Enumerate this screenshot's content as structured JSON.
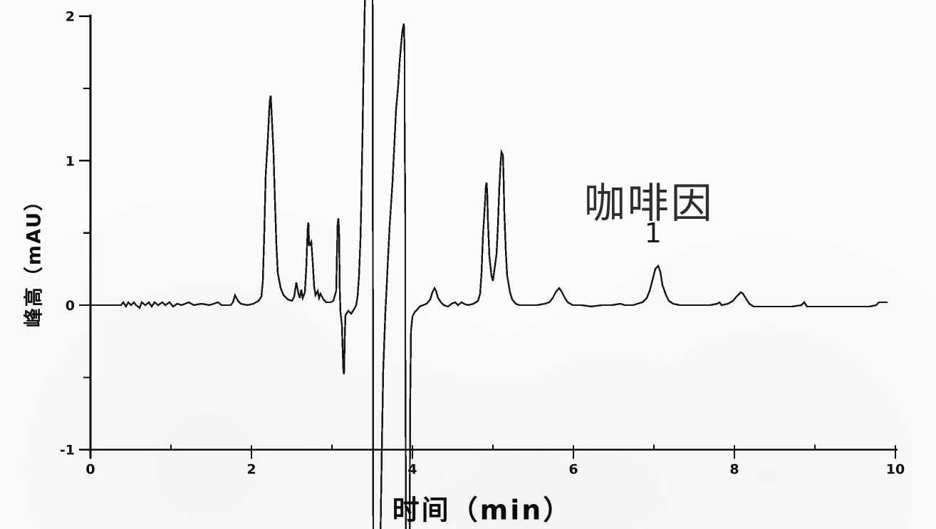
{
  "figure": {
    "background_color": "#fcfcfc",
    "trace_color": "#151515",
    "axis_color": "#0d0d0d",
    "annotation_color": "#2e2e2e"
  },
  "chart_data": {
    "type": "line",
    "title": "",
    "xlabel": "时间（min）",
    "ylabel": "峰高（mAU）",
    "xlim": [
      0,
      10
    ],
    "ylim": [
      -1,
      2
    ],
    "grid": false,
    "legend_position": "none",
    "x_major_ticks": [
      0,
      2,
      4,
      6,
      8,
      10
    ],
    "x_minor_ticks": [
      1,
      3,
      5,
      7,
      9
    ],
    "x_tick_labels": [
      "0",
      "2",
      "4",
      "6",
      "8",
      "10"
    ],
    "y_major_ticks": [
      2,
      1,
      0,
      -1
    ],
    "y_minor_ticks": [
      1.5,
      0.5,
      -0.5
    ],
    "y_tick_labels": [
      "2",
      "1",
      "0",
      "-1"
    ],
    "annotations": [
      {
        "text": "咖啡因",
        "x_min": 6.94,
        "y_mAU": 0.73
      },
      {
        "text": "1",
        "x_min": 6.99,
        "y_mAU": 0.5
      }
    ],
    "labeled_peaks": [
      {
        "peak_number": "1",
        "compound": "咖啡因",
        "retention_time_min": 7.05,
        "height_mAU": 0.27
      }
    ],
    "off_scale_segments": [
      {
        "time_min_range": [
          3.42,
          3.51
        ],
        "direction": "above_top",
        "beyond_mAU": 2
      },
      {
        "time_min_range": [
          3.51,
          3.6
        ],
        "direction": "below_bottom",
        "beyond_mAU": -1
      },
      {
        "time_min_range": [
          3.92,
          3.97
        ],
        "direction": "below_bottom",
        "beyond_mAU": -1
      }
    ],
    "series": [
      {
        "name": "HPLC chromatogram",
        "points": [
          [
            0.0,
            0
          ],
          [
            0.38,
            0
          ],
          [
            0.41,
            0.02
          ],
          [
            0.44,
            -0.01
          ],
          [
            0.47,
            0.02
          ],
          [
            0.5,
            0
          ],
          [
            0.54,
            0.02
          ],
          [
            0.57,
            0
          ],
          [
            0.61,
            -0.02
          ],
          [
            0.64,
            0.02
          ],
          [
            0.68,
            0
          ],
          [
            0.73,
            0.02
          ],
          [
            0.76,
            -0.01
          ],
          [
            0.8,
            0.02
          ],
          [
            0.84,
            0
          ],
          [
            0.89,
            0.02
          ],
          [
            0.93,
            0
          ],
          [
            0.98,
            0.02
          ],
          [
            1.03,
            -0.01
          ],
          [
            1.08,
            0.01
          ],
          [
            1.13,
            0
          ],
          [
            1.22,
            0.02
          ],
          [
            1.28,
            0
          ],
          [
            1.38,
            0.01
          ],
          [
            1.48,
            0
          ],
          [
            1.58,
            0.02
          ],
          [
            1.63,
            0
          ],
          [
            1.74,
            0
          ],
          [
            1.77,
            0.02
          ],
          [
            1.8,
            0.07
          ],
          [
            1.83,
            0.03
          ],
          [
            1.87,
            0.01
          ],
          [
            1.95,
            0
          ],
          [
            2.03,
            0.01
          ],
          [
            2.09,
            0.03
          ],
          [
            2.12,
            0.06
          ],
          [
            2.14,
            0.17
          ],
          [
            2.16,
            0.5
          ],
          [
            2.18,
            0.9
          ],
          [
            2.2,
            1.15
          ],
          [
            2.22,
            1.35
          ],
          [
            2.23,
            1.42
          ],
          [
            2.24,
            1.45
          ],
          [
            2.25,
            1.36
          ],
          [
            2.27,
            1.05
          ],
          [
            2.29,
            0.72
          ],
          [
            2.31,
            0.42
          ],
          [
            2.33,
            0.22
          ],
          [
            2.36,
            0.12
          ],
          [
            2.4,
            0.07
          ],
          [
            2.45,
            0.04
          ],
          [
            2.5,
            0.03
          ],
          [
            2.53,
            0.06
          ],
          [
            2.56,
            0.16
          ],
          [
            2.58,
            0.08
          ],
          [
            2.6,
            0.05
          ],
          [
            2.62,
            0.11
          ],
          [
            2.64,
            0.05
          ],
          [
            2.66,
            0.09
          ],
          [
            2.68,
            0.26
          ],
          [
            2.7,
            0.54
          ],
          [
            2.71,
            0.57
          ],
          [
            2.72,
            0.41
          ],
          [
            2.74,
            0.44
          ],
          [
            2.76,
            0.3
          ],
          [
            2.78,
            0.13
          ],
          [
            2.8,
            0.07
          ],
          [
            2.82,
            0.1
          ],
          [
            2.84,
            0.05
          ],
          [
            2.86,
            0.08
          ],
          [
            2.89,
            0.04
          ],
          [
            2.93,
            0.02
          ],
          [
            2.98,
            0.02
          ],
          [
            3.02,
            0.03
          ],
          [
            3.05,
            0.1
          ],
          [
            3.06,
            0.35
          ],
          [
            3.07,
            0.56
          ],
          [
            3.08,
            0.6
          ],
          [
            3.09,
            0.52
          ],
          [
            3.1,
            0.1
          ],
          [
            3.11,
            -0.05
          ],
          [
            3.12,
            -0.14
          ],
          [
            3.13,
            -0.3
          ],
          [
            3.14,
            -0.45
          ],
          [
            3.15,
            -0.48
          ],
          [
            3.16,
            -0.22
          ],
          [
            3.17,
            -0.07
          ],
          [
            3.2,
            -0.04
          ],
          [
            3.24,
            -0.06
          ],
          [
            3.27,
            -0.03
          ],
          [
            3.3,
            0.0
          ],
          [
            3.32,
            0.06
          ],
          [
            3.34,
            0.2
          ],
          [
            3.35,
            0.45
          ],
          [
            3.36,
            0.66
          ],
          [
            3.37,
            0.95
          ],
          [
            3.38,
            1.2
          ],
          [
            3.39,
            1.52
          ],
          [
            3.4,
            1.8
          ],
          [
            3.42,
            2.3
          ],
          [
            3.505,
            2.3
          ],
          [
            3.51,
            -1.65
          ],
          [
            3.6,
            -1.65
          ],
          [
            3.62,
            -1.0
          ],
          [
            3.64,
            -0.45
          ],
          [
            3.66,
            -0.05
          ],
          [
            3.68,
            0.15
          ],
          [
            3.7,
            0.35
          ],
          [
            3.72,
            0.55
          ],
          [
            3.75,
            0.85
          ],
          [
            3.78,
            1.15
          ],
          [
            3.8,
            1.35
          ],
          [
            3.82,
            1.52
          ],
          [
            3.84,
            1.68
          ],
          [
            3.86,
            1.8
          ],
          [
            3.88,
            1.9
          ],
          [
            3.89,
            1.95
          ],
          [
            3.9,
            1.75
          ],
          [
            3.905,
            1.3
          ],
          [
            3.91,
            0.6
          ],
          [
            3.915,
            -0.3
          ],
          [
            3.92,
            -1.65
          ],
          [
            3.965,
            -1.65
          ],
          [
            3.975,
            -0.6
          ],
          [
            3.985,
            -0.18
          ],
          [
            4.0,
            -0.08
          ],
          [
            4.03,
            -0.05
          ],
          [
            4.06,
            -0.03
          ],
          [
            4.09,
            -0.01
          ],
          [
            4.13,
            0.0
          ],
          [
            4.18,
            0.01
          ],
          [
            4.22,
            0.04
          ],
          [
            4.25,
            0.09
          ],
          [
            4.27,
            0.12
          ],
          [
            4.29,
            0.1
          ],
          [
            4.32,
            0.05
          ],
          [
            4.35,
            0.02
          ],
          [
            4.39,
            0.0
          ],
          [
            4.44,
            -0.01
          ],
          [
            4.49,
            0.01
          ],
          [
            4.53,
            0.02
          ],
          [
            4.57,
            0.0
          ],
          [
            4.61,
            0.02
          ],
          [
            4.64,
            0.01
          ],
          [
            4.69,
            0.0
          ],
          [
            4.76,
            0.01
          ],
          [
            4.81,
            0.03
          ],
          [
            4.84,
            0.08
          ],
          [
            4.86,
            0.22
          ],
          [
            4.88,
            0.48
          ],
          [
            4.9,
            0.72
          ],
          [
            4.91,
            0.82
          ],
          [
            4.92,
            0.85
          ],
          [
            4.93,
            0.78
          ],
          [
            4.94,
            0.58
          ],
          [
            4.96,
            0.34
          ],
          [
            4.98,
            0.2
          ],
          [
            5.0,
            0.17
          ],
          [
            5.02,
            0.24
          ],
          [
            5.04,
            0.35
          ],
          [
            5.06,
            0.55
          ],
          [
            5.08,
            0.82
          ],
          [
            5.1,
            1.0
          ],
          [
            5.11,
            1.06
          ],
          [
            5.12,
            1.04
          ],
          [
            5.13,
            0.88
          ],
          [
            5.14,
            0.64
          ],
          [
            5.16,
            0.38
          ],
          [
            5.18,
            0.2
          ],
          [
            5.21,
            0.09
          ],
          [
            5.24,
            0.04
          ],
          [
            5.28,
            0.01
          ],
          [
            5.33,
            0.0
          ],
          [
            5.45,
            0.0
          ],
          [
            5.55,
            0.0
          ],
          [
            5.65,
            0.01
          ],
          [
            5.7,
            0.02
          ],
          [
            5.74,
            0.05
          ],
          [
            5.78,
            0.09
          ],
          [
            5.82,
            0.12
          ],
          [
            5.85,
            0.1
          ],
          [
            5.89,
            0.05
          ],
          [
            5.93,
            0.02
          ],
          [
            5.99,
            0.0
          ],
          [
            6.1,
            0.0
          ],
          [
            6.22,
            -0.01
          ],
          [
            6.35,
            0.0
          ],
          [
            6.48,
            0.0
          ],
          [
            6.58,
            0.01
          ],
          [
            6.64,
            0.0
          ],
          [
            6.74,
            0.0
          ],
          [
            6.8,
            0.01
          ],
          [
            6.86,
            0.02
          ],
          [
            6.91,
            0.05
          ],
          [
            6.95,
            0.1
          ],
          [
            6.99,
            0.19
          ],
          [
            7.02,
            0.25
          ],
          [
            7.05,
            0.27
          ],
          [
            7.08,
            0.23
          ],
          [
            7.11,
            0.14
          ],
          [
            7.15,
            0.07
          ],
          [
            7.19,
            0.03
          ],
          [
            7.24,
            0.01
          ],
          [
            7.32,
            0.0
          ],
          [
            7.45,
            0.0
          ],
          [
            7.58,
            0.0
          ],
          [
            7.7,
            0.0
          ],
          [
            7.79,
            0.01
          ],
          [
            7.81,
            0.02
          ],
          [
            7.84,
            0.0
          ],
          [
            7.92,
            0.01
          ],
          [
            7.98,
            0.03
          ],
          [
            8.03,
            0.06
          ],
          [
            8.08,
            0.09
          ],
          [
            8.11,
            0.08
          ],
          [
            8.15,
            0.04
          ],
          [
            8.19,
            0.01
          ],
          [
            8.24,
            -0.01
          ],
          [
            8.35,
            -0.01
          ],
          [
            8.48,
            -0.01
          ],
          [
            8.6,
            -0.01
          ],
          [
            8.72,
            -0.01
          ],
          [
            8.83,
            0.0
          ],
          [
            8.87,
            0.02
          ],
          [
            8.9,
            -0.01
          ],
          [
            8.96,
            -0.01
          ],
          [
            9.08,
            -0.01
          ],
          [
            9.2,
            -0.01
          ],
          [
            9.33,
            -0.01
          ],
          [
            9.46,
            -0.01
          ],
          [
            9.58,
            -0.01
          ],
          [
            9.68,
            -0.01
          ],
          [
            9.76,
            0.0
          ],
          [
            9.8,
            0.02
          ],
          [
            9.85,
            0.02
          ],
          [
            9.9,
            0.02
          ]
        ]
      }
    ]
  }
}
